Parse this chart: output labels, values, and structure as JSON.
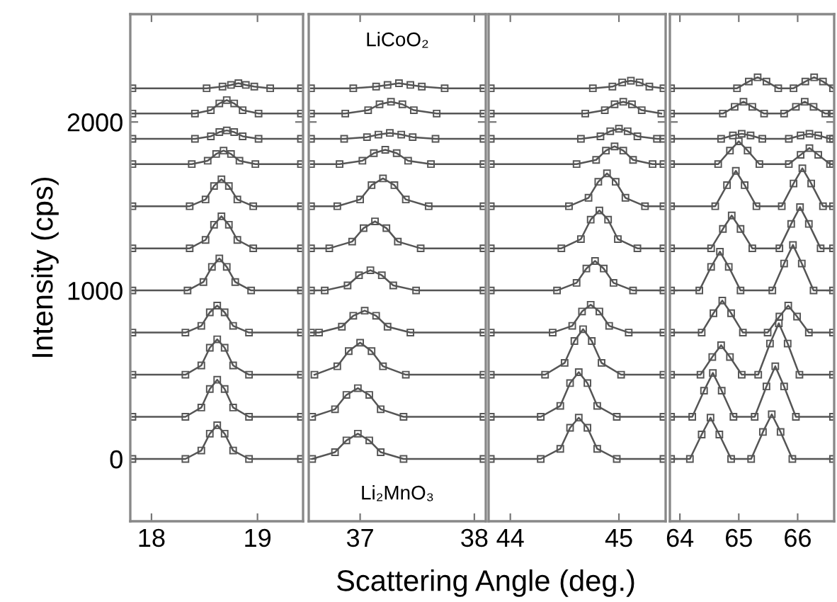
{
  "chart_data": [
    {
      "type": "line",
      "ylabel": "Intensity (cps)",
      "xlim": [
        17.8,
        19.43
      ],
      "xticks": [
        18,
        19
      ],
      "ylim": [
        -370,
        2640
      ],
      "yticks": [
        0,
        1000,
        2000
      ],
      "marker": "square",
      "line_style": "solid",
      "grid": false,
      "series": [
        {
          "color": "#555555",
          "x": [
            17.82,
            18.32,
            18.47,
            18.55,
            18.62,
            18.69,
            18.77,
            18.92,
            19.41
          ],
          "values": [
            0,
            0,
            50,
            150,
            200,
            150,
            50,
            0,
            0
          ]
        },
        {
          "color": "#555555",
          "x": [
            17.82,
            18.32,
            18.47,
            18.55,
            18.62,
            18.69,
            18.77,
            18.92,
            19.41
          ],
          "values": [
            250,
            250,
            305,
            415,
            470,
            415,
            305,
            250,
            250
          ]
        },
        {
          "color": "#555555",
          "x": [
            17.82,
            18.32,
            18.47,
            18.55,
            18.62,
            18.69,
            18.77,
            18.92,
            19.41
          ],
          "values": [
            500,
            500,
            555,
            660,
            710,
            660,
            555,
            500,
            500
          ]
        },
        {
          "color": "#555555",
          "x": [
            17.82,
            18.32,
            18.47,
            18.55,
            18.62,
            18.69,
            18.77,
            18.92,
            19.41
          ],
          "values": [
            750,
            750,
            790,
            870,
            910,
            870,
            790,
            750,
            750
          ]
        },
        {
          "color": "#555555",
          "x": [
            17.82,
            18.34,
            18.49,
            18.57,
            18.64,
            18.71,
            18.79,
            18.94,
            19.41
          ],
          "values": [
            1000,
            1000,
            1050,
            1140,
            1190,
            1140,
            1050,
            1000,
            1000
          ]
        },
        {
          "color": "#555555",
          "x": [
            17.82,
            18.36,
            18.51,
            18.59,
            18.66,
            18.73,
            18.81,
            18.96,
            19.41
          ],
          "values": [
            1250,
            1250,
            1300,
            1390,
            1440,
            1390,
            1300,
            1250,
            1250
          ]
        },
        {
          "color": "#555555",
          "x": [
            17.82,
            18.36,
            18.51,
            18.59,
            18.66,
            18.73,
            18.81,
            18.96,
            19.41
          ],
          "values": [
            1500,
            1500,
            1540,
            1620,
            1660,
            1620,
            1540,
            1500,
            1500
          ]
        },
        {
          "color": "#555555",
          "x": [
            17.82,
            18.38,
            18.53,
            18.61,
            18.68,
            18.75,
            18.83,
            18.98,
            19.41
          ],
          "values": [
            1750,
            1750,
            1770,
            1810,
            1830,
            1810,
            1770,
            1750,
            1750
          ]
        },
        {
          "color": "#555555",
          "x": [
            17.82,
            18.41,
            18.56,
            18.64,
            18.71,
            18.78,
            18.86,
            19.01,
            19.41
          ],
          "values": [
            1900,
            1900,
            1915,
            1940,
            1950,
            1940,
            1915,
            1900,
            1900
          ]
        },
        {
          "color": "#555555",
          "x": [
            17.82,
            18.41,
            18.56,
            18.64,
            18.71,
            18.78,
            18.86,
            19.01,
            19.41
          ],
          "values": [
            2050,
            2050,
            2070,
            2110,
            2130,
            2110,
            2070,
            2050,
            2050
          ]
        },
        {
          "color": "#555555",
          "x": [
            17.82,
            18.52,
            18.67,
            18.75,
            18.82,
            18.89,
            18.97,
            19.12,
            19.41
          ],
          "values": [
            2200,
            2200,
            2210,
            2220,
            2230,
            2220,
            2210,
            2200,
            2200
          ]
        }
      ]
    },
    {
      "type": "line",
      "xlabel": "Scattering Angle (deg.)",
      "xlim": [
        36.55,
        38.1
      ],
      "xticks": [
        37,
        38
      ],
      "ylim": [
        -370,
        2640
      ],
      "yticks": [
        0,
        1000,
        2000
      ],
      "tick_labels": "x",
      "marker": "square",
      "line_style": "solid",
      "grid": false,
      "annotations": [
        "LiCoO₂",
        "Li₂MnO₃"
      ],
      "series": [
        {
          "color": "#555555",
          "x": [
            36.58,
            36.78,
            36.88,
            36.98,
            37.08,
            37.18,
            37.38,
            38.08
          ],
          "values": [
            0,
            40,
            110,
            150,
            110,
            40,
            0,
            0
          ]
        },
        {
          "color": "#555555",
          "x": [
            36.58,
            36.78,
            36.88,
            36.98,
            37.08,
            37.18,
            37.38,
            38.08
          ],
          "values": [
            250,
            295,
            380,
            420,
            380,
            295,
            250,
            250
          ]
        },
        {
          "color": "#555555",
          "x": [
            36.6,
            36.8,
            36.9,
            37.0,
            37.1,
            37.2,
            37.4,
            38.08
          ],
          "values": [
            500,
            550,
            640,
            690,
            640,
            550,
            500,
            500
          ]
        },
        {
          "color": "#555555",
          "x": [
            36.57,
            36.64,
            36.84,
            36.94,
            37.04,
            37.14,
            37.24,
            37.44,
            38.08
          ],
          "values": [
            750,
            750,
            785,
            850,
            880,
            850,
            785,
            750,
            750
          ]
        },
        {
          "color": "#555555",
          "x": [
            36.57,
            36.69,
            36.89,
            36.99,
            37.09,
            37.19,
            37.29,
            37.49,
            38.08
          ],
          "values": [
            1000,
            1000,
            1030,
            1090,
            1120,
            1090,
            1030,
            1000,
            1000
          ]
        },
        {
          "color": "#555555",
          "x": [
            36.57,
            36.73,
            36.93,
            37.03,
            37.13,
            37.23,
            37.33,
            37.53,
            38.08
          ],
          "values": [
            1250,
            1250,
            1290,
            1370,
            1410,
            1370,
            1290,
            1250,
            1250
          ]
        },
        {
          "color": "#555555",
          "x": [
            36.57,
            36.8,
            37.0,
            37.1,
            37.2,
            37.3,
            37.4,
            37.6,
            38.08
          ],
          "values": [
            1500,
            1500,
            1540,
            1625,
            1665,
            1625,
            1540,
            1500,
            1500
          ]
        },
        {
          "color": "#555555",
          "x": [
            36.57,
            36.82,
            37.02,
            37.12,
            37.22,
            37.32,
            37.42,
            37.62,
            38.08
          ],
          "values": [
            1750,
            1750,
            1770,
            1815,
            1835,
            1815,
            1770,
            1750,
            1750
          ]
        },
        {
          "color": "#555555",
          "x": [
            36.57,
            36.86,
            37.06,
            37.16,
            37.26,
            37.36,
            37.46,
            37.66,
            38.08
          ],
          "values": [
            1900,
            1900,
            1910,
            1925,
            1935,
            1925,
            1910,
            1900,
            1900
          ]
        },
        {
          "color": "#555555",
          "x": [
            36.57,
            36.87,
            37.07,
            37.17,
            37.27,
            37.37,
            37.47,
            37.67,
            38.08
          ],
          "values": [
            2050,
            2050,
            2070,
            2105,
            2120,
            2105,
            2070,
            2050,
            2050
          ]
        },
        {
          "color": "#555555",
          "x": [
            36.57,
            36.94,
            37.14,
            37.24,
            37.34,
            37.44,
            37.54,
            37.74,
            38.08
          ],
          "values": [
            2200,
            2200,
            2210,
            2220,
            2230,
            2220,
            2210,
            2200,
            2200
          ]
        }
      ]
    },
    {
      "type": "line",
      "xlim": [
        43.8,
        45.43
      ],
      "xticks": [
        44,
        45
      ],
      "ylim": [
        -370,
        2640
      ],
      "yticks": [
        0,
        1000,
        2000
      ],
      "tick_labels": "x",
      "marker": "square",
      "line_style": "solid",
      "grid": false,
      "series": [
        {
          "color": "#555555",
          "x": [
            43.82,
            44.28,
            44.46,
            44.55,
            44.63,
            44.71,
            44.8,
            44.98,
            45.41
          ],
          "values": [
            0,
            0,
            60,
            185,
            245,
            185,
            60,
            0,
            0
          ]
        },
        {
          "color": "#555555",
          "x": [
            43.82,
            44.28,
            44.46,
            44.55,
            44.63,
            44.71,
            44.8,
            44.98,
            45.41
          ],
          "values": [
            250,
            250,
            315,
            450,
            515,
            450,
            315,
            250,
            250
          ]
        },
        {
          "color": "#555555",
          "x": [
            43.82,
            44.32,
            44.5,
            44.59,
            44.67,
            44.75,
            44.84,
            45.02,
            45.41
          ],
          "values": [
            500,
            500,
            570,
            700,
            770,
            700,
            570,
            500,
            500
          ]
        },
        {
          "color": "#555555",
          "x": [
            43.82,
            44.39,
            44.57,
            44.66,
            44.74,
            44.82,
            44.91,
            45.09,
            45.41
          ],
          "values": [
            750,
            750,
            790,
            875,
            915,
            875,
            790,
            750,
            750
          ]
        },
        {
          "color": "#555555",
          "x": [
            43.82,
            44.43,
            44.61,
            44.7,
            44.78,
            44.86,
            44.95,
            45.13,
            45.41
          ],
          "values": [
            1000,
            1000,
            1045,
            1130,
            1175,
            1130,
            1045,
            1000,
            1000
          ]
        },
        {
          "color": "#555555",
          "x": [
            43.82,
            44.47,
            44.65,
            44.74,
            44.82,
            44.9,
            44.99,
            45.17,
            45.41
          ],
          "values": [
            1250,
            1250,
            1305,
            1420,
            1475,
            1420,
            1305,
            1250,
            1250
          ]
        },
        {
          "color": "#555555",
          "x": [
            43.82,
            44.54,
            44.72,
            44.81,
            44.89,
            44.97,
            45.06,
            45.24,
            45.41
          ],
          "values": [
            1500,
            1500,
            1550,
            1645,
            1695,
            1645,
            1550,
            1500,
            1500
          ]
        },
        {
          "color": "#555555",
          "x": [
            43.82,
            44.61,
            44.79,
            44.88,
            44.96,
            45.04,
            45.13,
            45.31,
            45.41
          ],
          "values": [
            1750,
            1750,
            1775,
            1830,
            1855,
            1830,
            1775,
            1750,
            1750
          ]
        },
        {
          "color": "#555555",
          "x": [
            43.82,
            44.65,
            44.83,
            44.92,
            45.0,
            45.08,
            45.17,
            45.35,
            45.41
          ],
          "values": [
            1900,
            1900,
            1915,
            1945,
            1960,
            1945,
            1915,
            1900,
            1900
          ]
        },
        {
          "color": "#555555",
          "x": [
            43.82,
            44.69,
            44.87,
            44.96,
            45.04,
            45.12,
            45.21,
            45.39
          ],
          "values": [
            2050,
            2050,
            2070,
            2105,
            2120,
            2105,
            2070,
            2050
          ]
        },
        {
          "color": "#555555",
          "x": [
            43.82,
            44.76,
            44.94,
            45.03,
            45.11,
            45.19,
            45.28,
            45.41
          ],
          "values": [
            2200,
            2200,
            2210,
            2235,
            2245,
            2235,
            2210,
            2200
          ]
        }
      ]
    },
    {
      "type": "line",
      "xlim": [
        63.83,
        66.62
      ],
      "xticks": [
        64,
        65,
        66
      ],
      "ylim": [
        -370,
        2640
      ],
      "yticks": [
        0,
        1000,
        2000
      ],
      "tick_labels": "x",
      "marker": "square",
      "line_style": "solid",
      "grid": false,
      "series": [
        {
          "color": "#555555",
          "x": [
            63.85,
            64.17,
            64.37,
            64.52,
            64.67,
            64.87,
            65.21,
            65.41,
            65.56,
            65.71,
            65.91,
            66.6
          ],
          "values": [
            0,
            0,
            145,
            245,
            145,
            0,
            0,
            160,
            265,
            160,
            0,
            0
          ]
        },
        {
          "color": "#555555",
          "x": [
            63.85,
            64.21,
            64.41,
            64.56,
            64.71,
            64.91,
            65.27,
            65.47,
            65.62,
            65.77,
            65.97,
            66.6
          ],
          "values": [
            250,
            250,
            405,
            510,
            405,
            250,
            250,
            430,
            550,
            430,
            250,
            250
          ]
        },
        {
          "color": "#555555",
          "x": [
            63.85,
            64.35,
            64.55,
            64.7,
            64.85,
            65.05,
            65.33,
            65.53,
            65.68,
            65.83,
            66.03,
            66.6
          ],
          "values": [
            500,
            500,
            605,
            675,
            605,
            500,
            500,
            685,
            805,
            685,
            500,
            500
          ]
        },
        {
          "color": "#555555",
          "x": [
            63.85,
            64.37,
            64.57,
            64.72,
            64.87,
            65.07,
            65.49,
            65.69,
            65.84,
            65.99,
            66.19,
            66.6
          ],
          "values": [
            750,
            750,
            865,
            940,
            865,
            750,
            750,
            845,
            910,
            845,
            750,
            750
          ]
        },
        {
          "color": "#555555",
          "x": [
            63.85,
            64.33,
            64.53,
            64.68,
            64.83,
            65.03,
            65.57,
            65.77,
            65.92,
            66.07,
            66.27,
            66.6
          ],
          "values": [
            1000,
            1000,
            1140,
            1230,
            1140,
            1000,
            1000,
            1160,
            1270,
            1160,
            1000,
            1000
          ]
        },
        {
          "color": "#555555",
          "x": [
            63.85,
            64.53,
            64.73,
            64.88,
            65.03,
            65.23,
            65.69,
            65.89,
            66.04,
            66.19,
            66.39,
            66.6
          ],
          "values": [
            1250,
            1250,
            1365,
            1445,
            1365,
            1250,
            1250,
            1395,
            1495,
            1395,
            1250,
            1250
          ]
        },
        {
          "color": "#555555",
          "x": [
            63.85,
            64.6,
            64.8,
            64.95,
            65.1,
            65.3,
            65.73,
            65.93,
            66.08,
            66.23,
            66.43,
            66.6
          ],
          "values": [
            1500,
            1500,
            1625,
            1710,
            1625,
            1500,
            1500,
            1635,
            1725,
            1635,
            1500,
            1500
          ]
        },
        {
          "color": "#555555",
          "x": [
            63.85,
            64.65,
            64.85,
            65.0,
            65.15,
            65.35,
            65.85,
            66.05,
            66.2,
            66.35,
            66.55,
            66.6
          ],
          "values": [
            1750,
            1750,
            1830,
            1885,
            1830,
            1750,
            1750,
            1805,
            1845,
            1805,
            1750,
            1750
          ]
        },
        {
          "color": "#555555",
          "x": [
            63.85,
            64.7,
            64.9,
            65.05,
            65.2,
            65.4,
            65.85,
            66.05,
            66.2,
            66.35,
            66.55,
            66.6
          ],
          "values": [
            1900,
            1900,
            1920,
            1930,
            1920,
            1900,
            1900,
            1920,
            1930,
            1920,
            1900,
            1900
          ]
        },
        {
          "color": "#555555",
          "x": [
            63.85,
            64.73,
            64.93,
            65.08,
            65.23,
            65.43,
            65.77,
            65.97,
            66.12,
            66.27,
            66.47,
            66.6
          ],
          "values": [
            2050,
            2050,
            2090,
            2120,
            2090,
            2050,
            2050,
            2090,
            2120,
            2090,
            2050,
            2050
          ]
        },
        {
          "color": "#555555",
          "x": [
            63.85,
            64.97,
            65.17,
            65.32,
            65.47,
            65.67,
            65.93,
            66.13,
            66.28,
            66.43,
            66.6
          ],
          "values": [
            2200,
            2200,
            2240,
            2265,
            2240,
            2200,
            2200,
            2240,
            2265,
            2240,
            2200
          ]
        }
      ]
    }
  ]
}
